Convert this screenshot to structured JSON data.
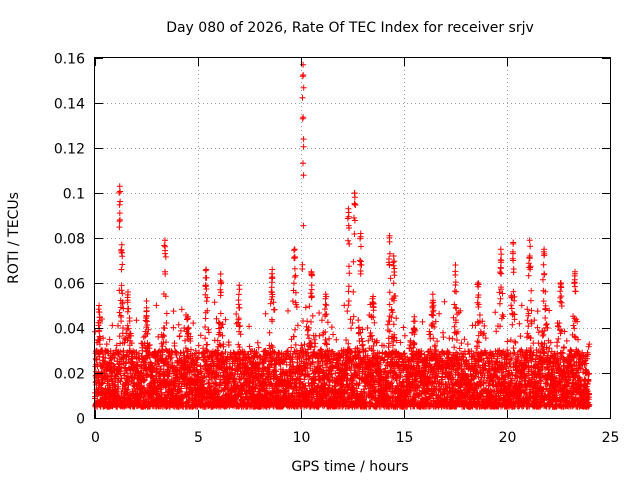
{
  "chart_data": {
    "type": "scatter",
    "title": "Day 080 of 2026, Rate Of TEC Index for receiver srjv",
    "xlabel": "GPS time / hours",
    "ylabel": "ROTI / TECUs",
    "xlim": [
      0,
      25
    ],
    "ylim": [
      0,
      0.16
    ],
    "xticks": [
      0,
      5,
      10,
      15,
      20,
      25
    ],
    "xtick_labels": [
      "0",
      "5",
      "10",
      "15",
      "20",
      "25"
    ],
    "yticks": [
      0,
      0.02,
      0.04,
      0.06,
      0.08,
      0.1,
      0.12,
      0.14,
      0.16
    ],
    "ytick_labels": [
      "0",
      "0.02",
      "0.04",
      "0.06",
      "0.08",
      "0.1",
      "0.12",
      "0.14",
      "0.16"
    ],
    "grid": true,
    "marker": "+",
    "color": "#ff0000",
    "x_data_range": [
      0,
      24
    ],
    "baseline_range": [
      0.005,
      0.03
    ],
    "bursts": [
      {
        "x": 0.2,
        "peak": 0.05,
        "width": 0.3
      },
      {
        "x": 1.2,
        "peak": 0.103,
        "width": 0.15
      },
      {
        "x": 1.3,
        "peak": 0.077,
        "width": 0.2
      },
      {
        "x": 1.6,
        "peak": 0.056,
        "width": 0.4
      },
      {
        "x": 2.5,
        "peak": 0.052,
        "width": 0.5
      },
      {
        "x": 3.4,
        "peak": 0.079,
        "width": 0.2
      },
      {
        "x": 4.5,
        "peak": 0.045,
        "width": 0.6
      },
      {
        "x": 5.4,
        "peak": 0.066,
        "width": 0.3
      },
      {
        "x": 6.1,
        "peak": 0.064,
        "width": 0.3
      },
      {
        "x": 7.0,
        "peak": 0.059,
        "width": 0.3
      },
      {
        "x": 8.6,
        "peak": 0.066,
        "width": 0.3
      },
      {
        "x": 9.7,
        "peak": 0.075,
        "width": 0.3
      },
      {
        "x": 10.1,
        "peak": 0.157,
        "width": 0.12
      },
      {
        "x": 10.5,
        "peak": 0.065,
        "width": 0.4
      },
      {
        "x": 11.2,
        "peak": 0.055,
        "width": 0.5
      },
      {
        "x": 12.3,
        "peak": 0.093,
        "width": 0.2
      },
      {
        "x": 12.6,
        "peak": 0.1,
        "width": 0.2
      },
      {
        "x": 12.9,
        "peak": 0.082,
        "width": 0.2
      },
      {
        "x": 13.5,
        "peak": 0.054,
        "width": 0.5
      },
      {
        "x": 14.3,
        "peak": 0.081,
        "width": 0.2
      },
      {
        "x": 14.5,
        "peak": 0.072,
        "width": 0.3
      },
      {
        "x": 15.5,
        "peak": 0.045,
        "width": 0.6
      },
      {
        "x": 16.4,
        "peak": 0.055,
        "width": 0.5
      },
      {
        "x": 17.5,
        "peak": 0.068,
        "width": 0.3
      },
      {
        "x": 18.6,
        "peak": 0.06,
        "width": 0.4
      },
      {
        "x": 19.7,
        "peak": 0.075,
        "width": 0.3
      },
      {
        "x": 20.3,
        "peak": 0.078,
        "width": 0.3
      },
      {
        "x": 21.1,
        "peak": 0.079,
        "width": 0.3
      },
      {
        "x": 21.8,
        "peak": 0.075,
        "width": 0.3
      },
      {
        "x": 22.6,
        "peak": 0.06,
        "width": 0.4
      },
      {
        "x": 23.3,
        "peak": 0.065,
        "width": 0.3
      }
    ]
  }
}
